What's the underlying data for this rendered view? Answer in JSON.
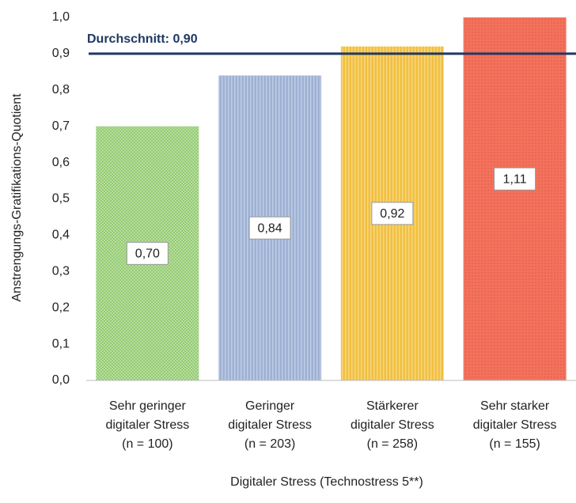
{
  "chart_data": {
    "type": "bar",
    "y_label": "Anstrengungs-Gratifikations-Quotient",
    "x_label": "Digitaler Stress (Technostress  5**)",
    "categories": [
      [
        "Sehr geringer",
        "digitaler Stress",
        "(n = 100)"
      ],
      [
        "Geringer",
        "digitaler Stress",
        "(n = 203)"
      ],
      [
        "Stärkerer",
        "digitaler Stress",
        "(n = 258)"
      ],
      [
        "Sehr starker",
        "digitaler Stress",
        "(n = 155)"
      ]
    ],
    "values": [
      0.7,
      0.84,
      0.92,
      1.11
    ],
    "value_labels": [
      "0,70",
      "0,84",
      "0,92",
      "1,11"
    ],
    "colors": [
      "#8dc868",
      "#9db1d5",
      "#f2c03e",
      "#f4725c"
    ],
    "ylim": [
      0,
      1
    ],
    "yticks": [
      {
        "value": 0,
        "label": "0,0"
      },
      {
        "value": 0.1,
        "label": "0,1"
      },
      {
        "value": 0.2,
        "label": "0,2"
      },
      {
        "value": 0.3,
        "label": "0,3"
      },
      {
        "value": 0.4,
        "label": "0,4"
      },
      {
        "value": 0.5,
        "label": "0,5"
      },
      {
        "value": 0.6,
        "label": "0,6"
      },
      {
        "value": 0.7,
        "label": "0,7"
      },
      {
        "value": 0.8,
        "label": "0,8"
      },
      {
        "value": 0.9,
        "label": "0,9"
      },
      {
        "value": 1,
        "label": "1,0"
      }
    ],
    "reference_line": {
      "value": 0.9,
      "label": "Durchschnitt: 0,90",
      "color": "#1f3864"
    }
  }
}
